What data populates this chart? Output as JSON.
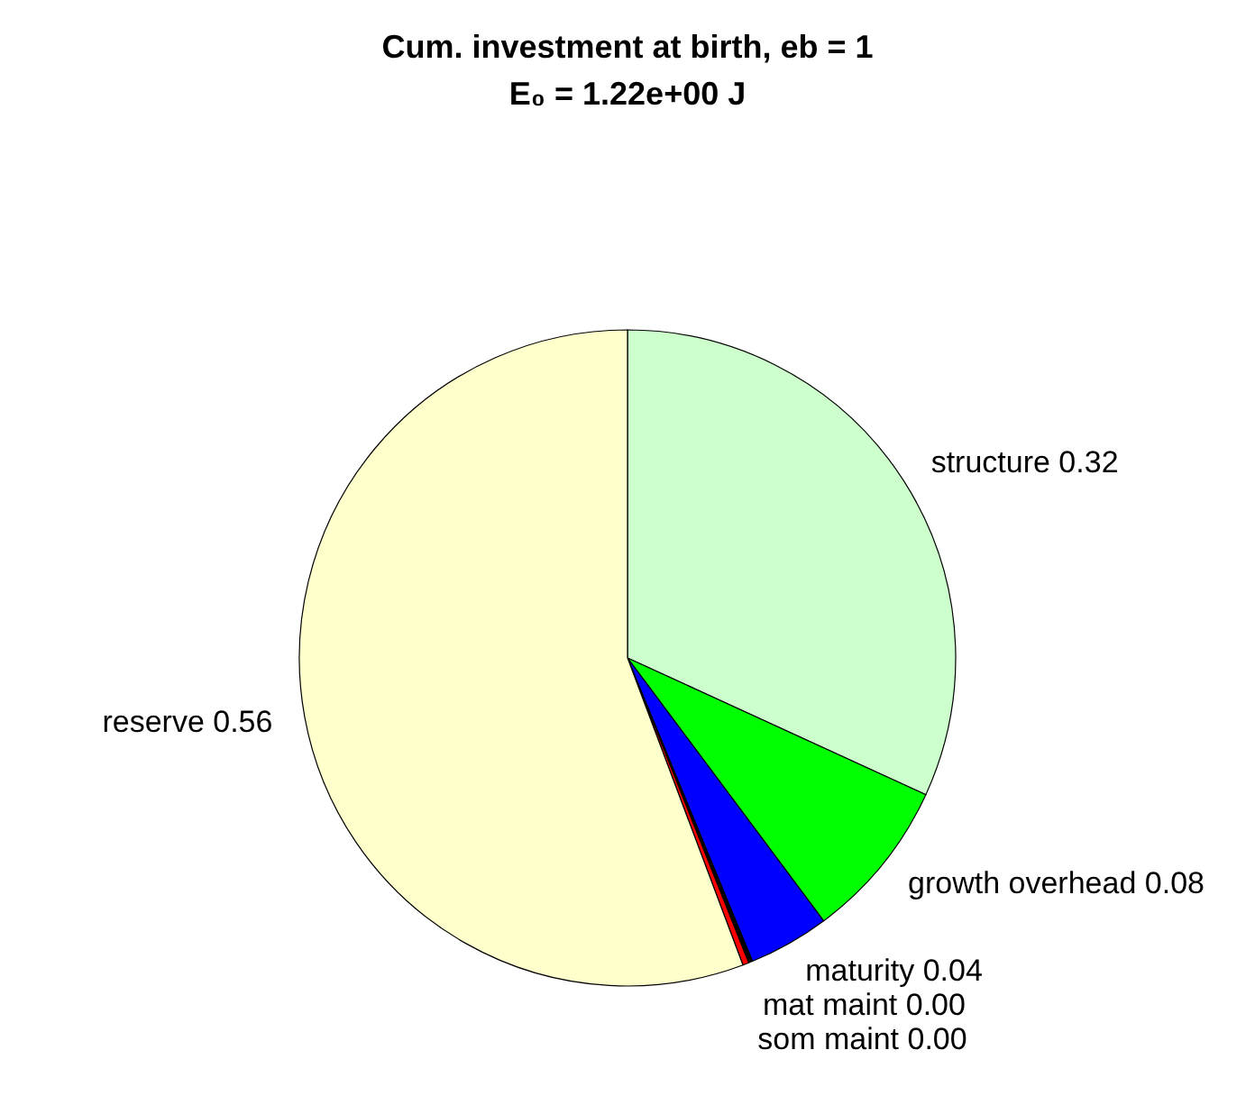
{
  "chart_data": {
    "type": "pie",
    "title": "Cum. investment at birth, eb = 1",
    "subtitle": "E₀ = 1.22e+00 J",
    "categories": [
      "structure",
      "growth overhead",
      "maturity",
      "mat maint",
      "som maint",
      "reserve"
    ],
    "values": [
      0.32,
      0.08,
      0.04,
      0.002,
      0.003,
      0.56
    ],
    "colors": [
      "#ccffcc",
      "#00ff00",
      "#0000ff",
      "#000000",
      "#ff0000",
      "#ffffcc"
    ],
    "value_labels": [
      "0.32",
      "0.08",
      "0.04",
      "0.00",
      "0.00",
      "0.56"
    ]
  }
}
